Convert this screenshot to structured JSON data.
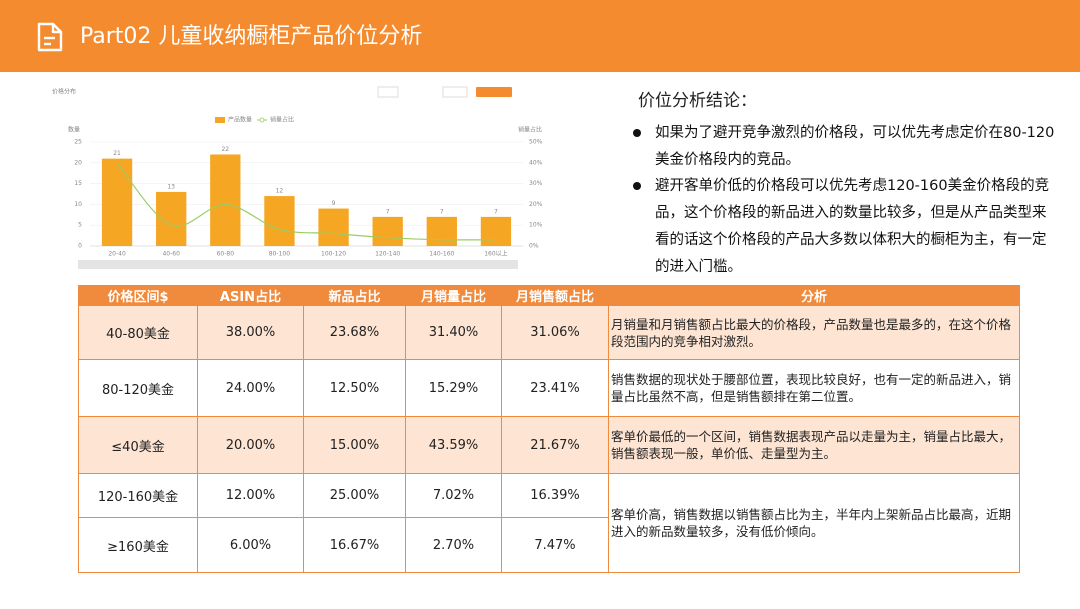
{
  "header": {
    "title": "Part02 儿童收纳橱柜产品价位分析"
  },
  "chart": {
    "type": "bar",
    "title": "价格分布",
    "y_label": "数量",
    "y2_label": "销量占比",
    "categories": [
      "20-40",
      "40-60",
      "60-80",
      "80-100",
      "100-120",
      "120-140",
      "140-160",
      "160以上"
    ],
    "series": [
      {
        "name": "产品数量",
        "color": "#f5a623",
        "values": [
          21,
          13,
          22,
          12,
          9,
          7,
          7,
          7
        ]
      },
      {
        "name": "销量占比",
        "color": "#9ccc65",
        "axis": "y2",
        "values": [
          40,
          10,
          20,
          8,
          6,
          4,
          3,
          3
        ]
      }
    ],
    "ylim": [
      0,
      25
    ],
    "yticks": [
      0,
      5,
      10,
      15,
      20,
      25
    ],
    "y2lim": [
      0,
      50
    ],
    "y2ticks": [
      {
        "value": 0,
        "label": "0%"
      },
      {
        "value": 10,
        "label": "10%"
      },
      {
        "value": 20,
        "label": "20%"
      },
      {
        "value": 30,
        "label": "30%"
      },
      {
        "value": 40,
        "label": "40%"
      },
      {
        "value": 50,
        "label": "50%"
      }
    ],
    "grid": true
  },
  "conclusion": {
    "title": "价位分析结论：",
    "items": [
      "如果为了避开竞争激烈的价格段，可以优先考虑定价在80-120美金价格段内的竞品。",
      "避开客单价低的价格段可以优先考虑120-160美金价格段的竞品，这个价格段的新品进入的数量比较多，但是从产品类型来看的话这个价格段的产品大多数以体积大的橱柜为主，有一定的进入门槛。"
    ]
  },
  "table": {
    "header": [
      "价格区间$",
      "ASIN占比",
      "新品占比",
      "月销量占比",
      "月销售额占比",
      "分析"
    ],
    "rows": [
      [
        "40-80美金",
        "38.00%",
        "23.68%",
        "31.40%",
        "31.06%",
        "月销量和月销售额占比最大的价格段，产品数量也是最多的，在这个价格段范围内的竞争相对激烈。"
      ],
      [
        "80-120美金",
        "24.00%",
        "12.50%",
        "15.29%",
        "23.41%",
        "销售数据的现状处于腰部位置，表现比较良好，也有一定的新品进入，销量占比虽然不高，但是销售额排在第二位置。"
      ],
      [
        "≤40美金",
        "20.00%",
        "15.00%",
        "43.59%",
        "21.67%",
        "客单价最低的一个区间，销售数据表现产品以走量为主，销量占比最大，销售额表现一般，单价低、走量型为主。"
      ],
      [
        "120-160美金",
        "12.00%",
        "25.00%",
        "7.02%",
        "16.39%",
        "客单价高，销售数据以销售额占比为主，半年内上架新品占比最高，近期进入的新品数量较多，没有低价倾向。"
      ],
      [
        "≥160美金",
        "6.00%",
        "16.67%",
        "2.70%",
        "7.47%"
      ]
    ]
  }
}
